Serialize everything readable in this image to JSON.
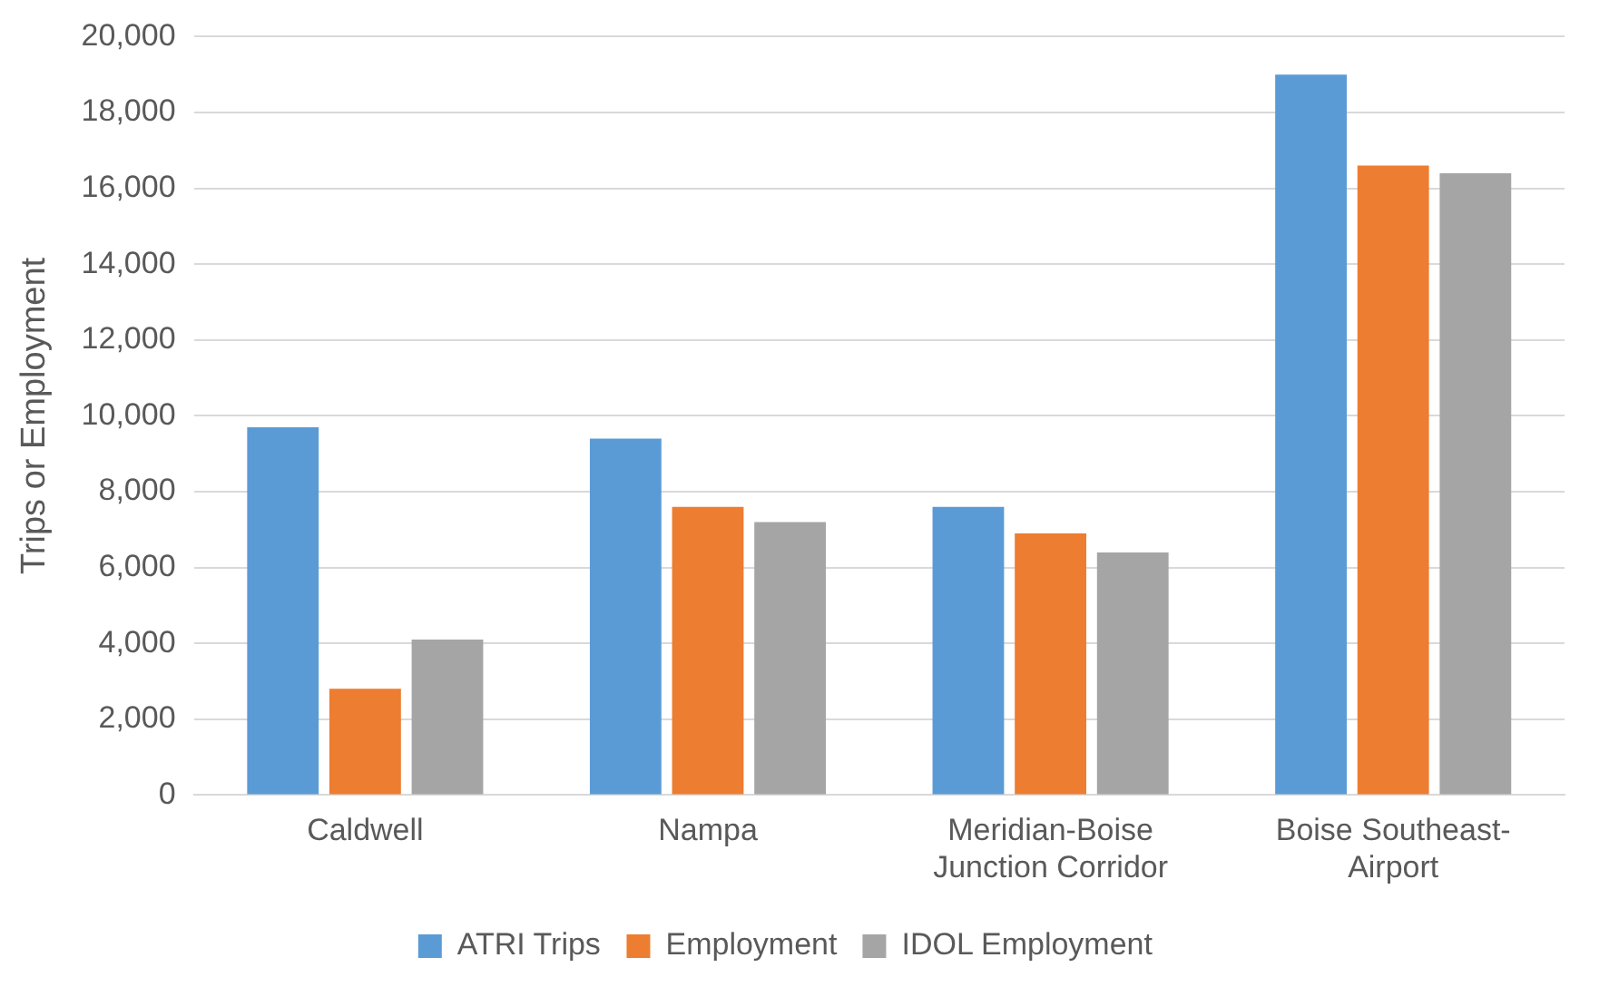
{
  "chart_data": {
    "type": "bar",
    "ylabel": "Trips or Employment",
    "categories": [
      "Caldwell",
      "Nampa",
      "Meridian-Boise Junction Corridor",
      "Boise Southeast-Airport"
    ],
    "series": [
      {
        "name": "ATRI Trips",
        "color": "#5b9bd5",
        "values": [
          9700,
          9400,
          7600,
          19000
        ]
      },
      {
        "name": "Employment",
        "color": "#ed7d31",
        "values": [
          2800,
          7600,
          6900,
          16600
        ]
      },
      {
        "name": "IDOL Employment",
        "color": "#a5a5a5",
        "values": [
          4100,
          7200,
          6400,
          16400
        ]
      }
    ],
    "ylim": [
      0,
      20000
    ],
    "yticks": [
      0,
      {
        "value": 2000,
        "label": "2,000"
      },
      {
        "value": 4000,
        "label": "4,000"
      },
      {
        "value": 6000,
        "label": "6,000"
      },
      {
        "value": 8000,
        "label": "8,000"
      },
      {
        "value": 10000,
        "label": "10,000"
      },
      {
        "value": 12000,
        "label": "12,000"
      },
      {
        "value": 14000,
        "label": "14,000"
      },
      {
        "value": 16000,
        "label": "16,000"
      },
      {
        "value": 18000,
        "label": "18,000"
      },
      {
        "value": 20000,
        "label": "20,000"
      }
    ],
    "grid": "y",
    "legend": "bottom"
  }
}
